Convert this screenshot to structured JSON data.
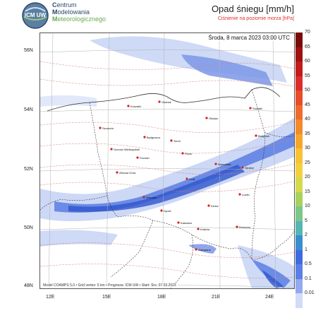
{
  "header": {
    "org_line1_cap": "C",
    "org_line1_rest": "entrum",
    "org_line2_cap": "M",
    "org_line2_rest": "odelowania",
    "org_line3_cap": "M",
    "org_line3_rest": "eteorologicznego",
    "logo_text": "ICM UW",
    "title": "Opad śniegu [mm/h]",
    "subtitle": "Ciśnienie na poziomie morza [hPa]"
  },
  "map": {
    "timestamp": "Środa, 8 marca 2023 03:00 UTC",
    "footer": "Model COAMPS 5.0 • Grid vertex: 5 km • Prognoza: ICM UW • Start: Śro. 07.03.2023",
    "lat_labels": [
      "56N",
      "54N",
      "52N",
      "50N",
      "48N"
    ],
    "lon_labels": [
      "12E",
      "15E",
      "18E",
      "21E",
      "24E"
    ],
    "cities": [
      {
        "name": "Koszalin"
      },
      {
        "name": "Gdańsk"
      },
      {
        "name": "Olsztyn"
      },
      {
        "name": "Suwałki"
      },
      {
        "name": "Szczecin"
      },
      {
        "name": "Bydgoszcz"
      },
      {
        "name": "Toruń"
      },
      {
        "name": "Białystok"
      },
      {
        "name": "Gorzów Wielkopolski"
      },
      {
        "name": "Poznań"
      },
      {
        "name": "Płock"
      },
      {
        "name": "Warszawa"
      },
      {
        "name": "Zielona Góra"
      },
      {
        "name": "Łódź"
      },
      {
        "name": "Siedlce"
      },
      {
        "name": "Wrocław"
      },
      {
        "name": "Lublin"
      },
      {
        "name": "Kielce"
      },
      {
        "name": "Opole"
      },
      {
        "name": "Katowice"
      },
      {
        "name": "Kraków"
      },
      {
        "name": "Rzeszów"
      },
      {
        "name": "Zakopane"
      }
    ]
  },
  "colorbar": {
    "labels": [
      "70",
      "65",
      "60",
      "55",
      "50",
      "45",
      "40",
      "35",
      "30",
      "25",
      "20",
      "15",
      "10",
      "5",
      "2",
      "1",
      "0.5",
      "0.1",
      "0.01"
    ],
    "colors": [
      "#7a0a0a",
      "#a01010",
      "#c41a1a",
      "#dd2c2c",
      "#e84c2a",
      "#ef6b2b",
      "#f38a2c",
      "#f6a62d",
      "#f8c235",
      "#f4d03f",
      "#d7d94c",
      "#a8d25b",
      "#7dc78a",
      "#55b6b6",
      "#3a8ed0",
      "#3f6be0",
      "#5a80e8",
      "#93a9f0",
      "#d2dcf8"
    ]
  }
}
